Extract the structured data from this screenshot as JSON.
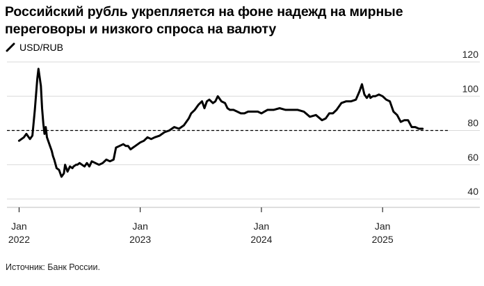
{
  "title": "Российский рубль укрепляется на фоне надежд на мирные переговоры и низкого спроса на валюту",
  "source": "Источник: Банк России.",
  "chart_data": {
    "type": "line",
    "title": "Российский рубль укрепляется на фоне надежд на мирные переговоры и низкого спроса на валюту",
    "xlabel": "",
    "ylabel": "",
    "ylim": [
      40,
      120
    ],
    "yticks": [
      "40",
      "60",
      "80",
      "100",
      "120"
    ],
    "xticks": [
      {
        "year": 2022,
        "label_top": "Jan",
        "label_bottom": "2022"
      },
      {
        "year": 2023,
        "label_top": "Jan",
        "label_bottom": "2023"
      },
      {
        "year": 2024,
        "label_top": "Jan",
        "label_bottom": "2024"
      },
      {
        "year": 2025,
        "label_top": "Jan",
        "label_bottom": "2025"
      }
    ],
    "xlim": [
      2021.9,
      2025.55
    ],
    "grid": true,
    "legend": "top-left",
    "reference_line": {
      "value": 80,
      "style": "dashed"
    },
    "colors": {
      "line": "#000000",
      "grid": "#d9d9d9",
      "dashed": "#000000"
    },
    "series": [
      {
        "name": "USD/RUB",
        "x": [
          2022.0,
          2022.04,
          2022.06,
          2022.09,
          2022.11,
          2022.13,
          2022.15,
          2022.16,
          2022.18,
          2022.19,
          2022.2,
          2022.21,
          2022.22,
          2022.23,
          2022.25,
          2022.27,
          2022.28,
          2022.29,
          2022.31,
          2022.33,
          2022.35,
          2022.37,
          2022.38,
          2022.4,
          2022.42,
          2022.44,
          2022.45,
          2022.47,
          2022.48,
          2022.5,
          2022.52,
          2022.54,
          2022.56,
          2022.58,
          2022.6,
          2022.63,
          2022.66,
          2022.69,
          2022.72,
          2022.75,
          2022.78,
          2022.8,
          2022.83,
          2022.86,
          2022.88,
          2022.9,
          2022.92,
          2022.94,
          2022.96,
          2022.98,
          2023.0,
          2023.03,
          2023.06,
          2023.09,
          2023.12,
          2023.16,
          2023.2,
          2023.24,
          2023.28,
          2023.32,
          2023.36,
          2023.4,
          2023.42,
          2023.45,
          2023.48,
          2023.51,
          2023.53,
          2023.55,
          2023.57,
          2023.6,
          2023.62,
          2023.64,
          2023.67,
          2023.7,
          2023.72,
          2023.74,
          2023.77,
          2023.8,
          2023.83,
          2023.86,
          2023.89,
          2023.93,
          2023.97,
          2024.0,
          2024.05,
          2024.1,
          2024.15,
          2024.2,
          2024.25,
          2024.3,
          2024.35,
          2024.4,
          2024.45,
          2024.5,
          2024.53,
          2024.56,
          2024.59,
          2024.62,
          2024.66,
          2024.7,
          2024.74,
          2024.78,
          2024.81,
          2024.83,
          2024.85,
          2024.87,
          2024.89,
          2024.9,
          2024.92,
          2024.94,
          2024.97,
          2025.0,
          2025.03,
          2025.06,
          2025.09,
          2025.12,
          2025.15,
          2025.18,
          2025.21,
          2025.24,
          2025.27,
          2025.3,
          2025.33
        ],
        "y": [
          74,
          76,
          78,
          75,
          77,
          92,
          110,
          116,
          106,
          93,
          84,
          78,
          82,
          76,
          72,
          68,
          65,
          63,
          58,
          57,
          53,
          55,
          60,
          56,
          59,
          58,
          59,
          60,
          60,
          61,
          60,
          59,
          61,
          59,
          62,
          61,
          60,
          61,
          63,
          62,
          63,
          70,
          71,
          72,
          71,
          71,
          69,
          70,
          71,
          72,
          73,
          74,
          76,
          75,
          76,
          77,
          79,
          80,
          82,
          81,
          83,
          87,
          90,
          92,
          95,
          97,
          93,
          97,
          98,
          96,
          97,
          100,
          97,
          96,
          93,
          92,
          92,
          91,
          90,
          90,
          91,
          91,
          91,
          90,
          92,
          92,
          93,
          92,
          92,
          92,
          91,
          88,
          89,
          86,
          87,
          90,
          90,
          92,
          96,
          97,
          97,
          98,
          103,
          107,
          101,
          99,
          101,
          99,
          100,
          100,
          101,
          100,
          98,
          97,
          91,
          89,
          85,
          86,
          86,
          82,
          82,
          81,
          81
        ]
      }
    ]
  }
}
